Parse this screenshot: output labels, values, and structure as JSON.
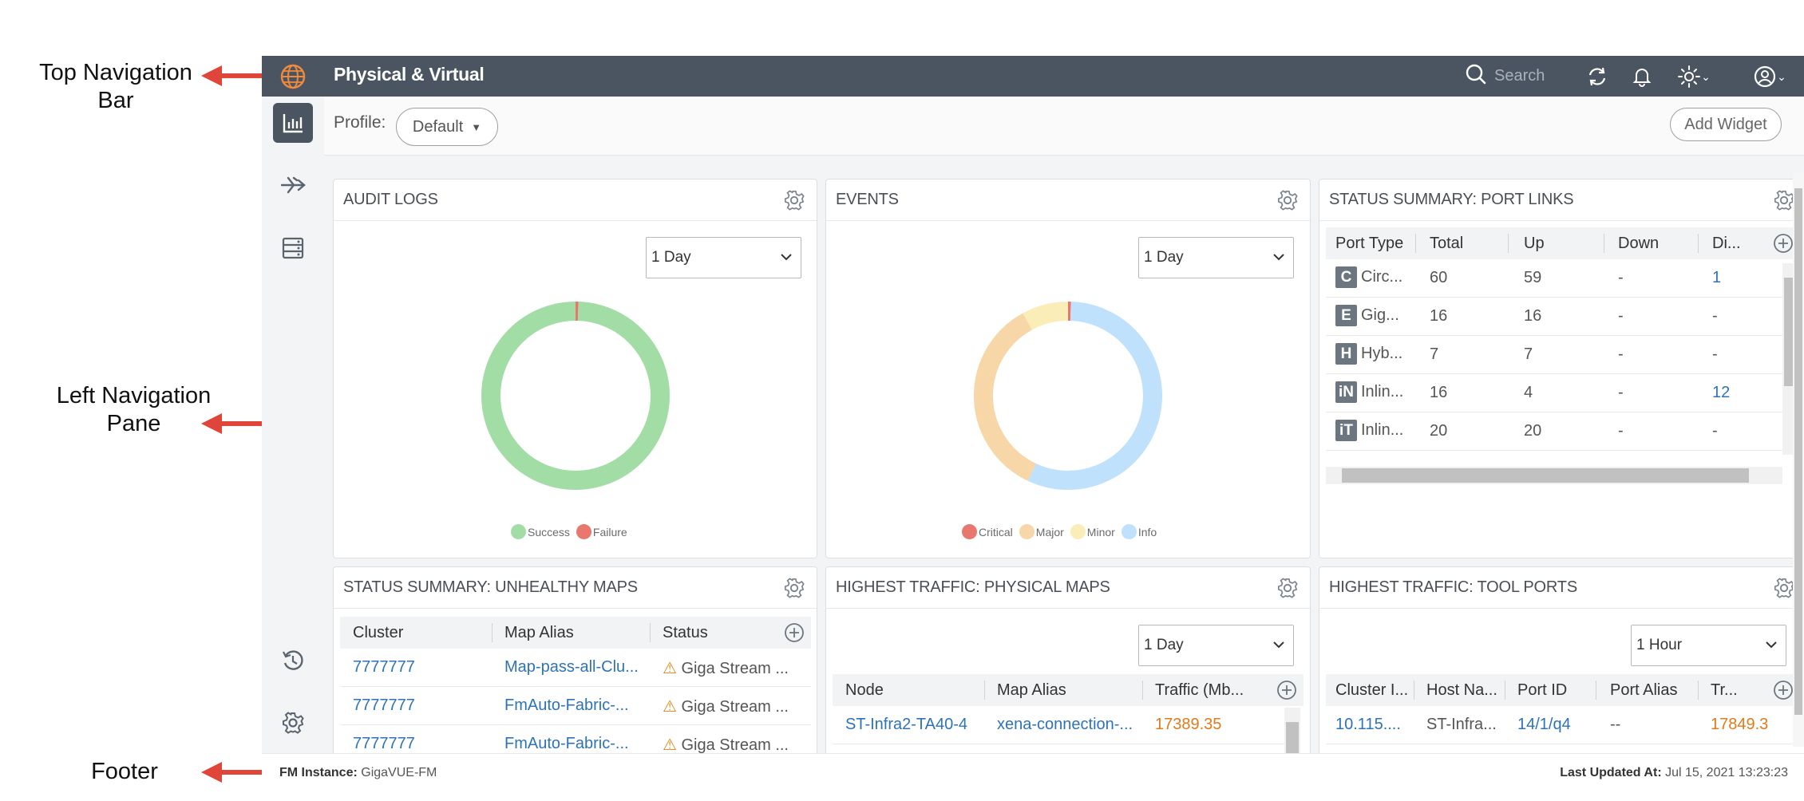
{
  "callouts": {
    "top_nav": [
      "Top Navigation",
      "Bar"
    ],
    "left_nav": [
      "Left Navigation",
      "Pane"
    ],
    "footer": "Footer"
  },
  "topbar": {
    "title": "Physical & Virtual",
    "search_placeholder": "Search"
  },
  "profile": {
    "label": "Profile:",
    "value": "Default",
    "add_widget": "Add Widget"
  },
  "audit_logs": {
    "title": "AUDIT LOGS",
    "range": "1 Day",
    "legend": [
      "Success",
      "Failure"
    ],
    "colors": {
      "success": "#a3dda6",
      "failure": "#e8776e"
    },
    "slices": {
      "success": 99.5,
      "failure": 0.5
    }
  },
  "events": {
    "title": "EVENTS",
    "range": "1 Day",
    "legend": [
      "Critical",
      "Major",
      "Minor",
      "Info"
    ],
    "colors": {
      "critical": "#e8776e",
      "major": "#f7d6a8",
      "minor": "#fbedb8",
      "info": "#bfe1fb"
    },
    "slices": {
      "critical": 0.5,
      "major": 35,
      "minor": 8,
      "info": 56.5
    }
  },
  "port_links": {
    "title": "STATUS SUMMARY: PORT LINKS",
    "columns": [
      "Port Type",
      "Total",
      "Up",
      "Down",
      "Di..."
    ],
    "rows": [
      {
        "badge": "C",
        "type": "Circ...",
        "total": "60",
        "up": "59",
        "down": "-",
        "di": "1"
      },
      {
        "badge": "E",
        "type": "Gig...",
        "total": "16",
        "up": "16",
        "down": "-",
        "di": "-"
      },
      {
        "badge": "H",
        "type": "Hyb...",
        "total": "7",
        "up": "7",
        "down": "-",
        "di": "-"
      },
      {
        "badge": "iN",
        "type": "Inlin...",
        "total": "16",
        "up": "4",
        "down": "-",
        "di": "12"
      },
      {
        "badge": "iT",
        "type": "Inlin...",
        "total": "20",
        "up": "20",
        "down": "-",
        "di": "-"
      }
    ]
  },
  "unhealthy_maps": {
    "title": "STATUS SUMMARY: UNHEALTHY MAPS",
    "columns": [
      "Cluster",
      "Map Alias",
      "Status"
    ],
    "rows": [
      {
        "cluster": "7777777",
        "alias": "Map-pass-all-Clu...",
        "status": "Giga Stream ..."
      },
      {
        "cluster": "7777777",
        "alias": "FmAuto-Fabric-...",
        "status": "Giga Stream ..."
      },
      {
        "cluster": "7777777",
        "alias": "FmAuto-Fabric-...",
        "status": "Giga Stream ..."
      }
    ]
  },
  "physical_maps": {
    "title": "HIGHEST TRAFFIC: PHYSICAL MAPS",
    "range": "1 Day",
    "columns": [
      "Node",
      "Map Alias",
      "Traffic (Mb..."
    ],
    "rows": [
      {
        "node": "ST-Infra2-TA40-4",
        "alias": "xena-connection-...",
        "traffic": "17389.35"
      }
    ]
  },
  "tool_ports": {
    "title": "HIGHEST TRAFFIC: TOOL PORTS",
    "range": "1 Hour",
    "columns": [
      "Cluster I...",
      "Host Na...",
      "Port ID",
      "Port Alias",
      "Tr..."
    ],
    "rows": [
      {
        "cluster": "10.115....",
        "host": "ST-Infra...",
        "port": "14/1/q4",
        "alias": "--",
        "traffic": "17849.3"
      }
    ]
  },
  "footer": {
    "instance_label": "FM Instance:",
    "instance_value": "GigaVUE-FM",
    "updated_label": "Last Updated At:",
    "updated_value": "Jul 15, 2021 13:23:23"
  }
}
